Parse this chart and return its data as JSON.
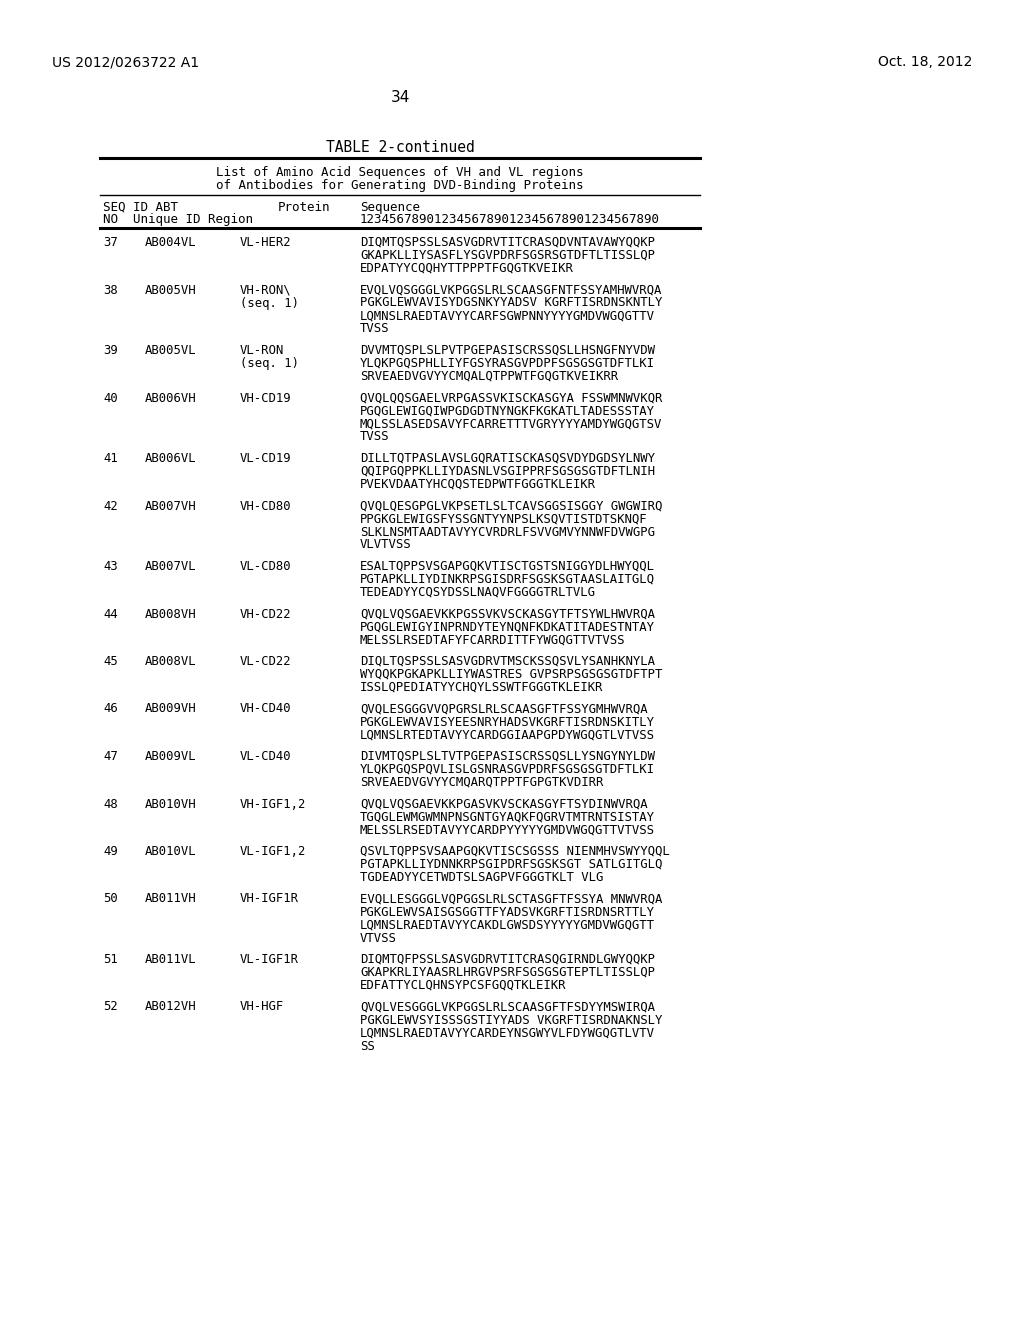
{
  "header_left": "US 2012/0263722 A1",
  "header_right": "Oct. 18, 2012",
  "page_number": "34",
  "table_title": "TABLE 2-continued",
  "subtitle1": "List of Amino Acid Sequences of VH and VL regions",
  "subtitle2": "of Antibodies for Generating DVD-Binding Proteins",
  "entries": [
    {
      "seq": "37",
      "abt": "AB004VL",
      "region": "VL-HER2",
      "region2": "",
      "lines": [
        "DIQMTQSPSSLSASVGDRVTITCRASQDVNTAVAWYQQKP",
        "GKAPKLLIYSASFLYSGVPDRFSGSRSGTDFTLTISSLQP",
        "EDPATYYCQQHYTTPPPTFGQGTKVEIKR"
      ]
    },
    {
      "seq": "38",
      "abt": "AB005VH",
      "region": "VH-RON\\",
      "region2": "(seq. 1)",
      "lines": [
        "EVQLVQSGGGLVKPGGSLRLSCAASGFNTFSSYAMHWVRQA",
        "PGKGLEWVAVISYDGSNKYYADSV KGRFTISRDNSKNTLY",
        "LQMNSLRAEDTAVYYCARFSGWPNNYYYYGMDVWGQGTTV",
        "TVSS"
      ]
    },
    {
      "seq": "39",
      "abt": "AB005VL",
      "region": "VL-RON",
      "region2": "(seq. 1)",
      "lines": [
        "DVVMTQSPLSLPVTPGEPASISCRSSQSLLHSNGFNYVDW",
        "YLQKPGQSPHLLIYFGSYRASGVPDPFSGSGSGTDFTLKI",
        "SRVEAEDVGVYYCMQALQTPPWTFGQGTKVEIKRR"
      ]
    },
    {
      "seq": "40",
      "abt": "AB006VH",
      "region": "VH-CD19",
      "region2": "",
      "lines": [
        "QVQLQQSGAELVRPGASSVKISCKASGYA FSSWMNWVKQR",
        "PGQGLEWIGQIWPGDGDTNYNGKFKGKATLTADESSSTAY",
        "MQLSSLASEDSAVYFCARRETTTVGRYYYYAMDYWGQGTSV",
        "TVSS"
      ]
    },
    {
      "seq": "41",
      "abt": "AB006VL",
      "region": "VL-CD19",
      "region2": "",
      "lines": [
        "DILLTQTPASLAVSLGQRATISCKASQSVDYDGDSYLNWY",
        "QQIPGQPPKLLIYDASNLVSGIPPRFSGSGSGTDFTLNIH",
        "PVEKVDAATYHCQQSTEDPWTFGGGTKLEIKR"
      ]
    },
    {
      "seq": "42",
      "abt": "AB007VH",
      "region": "VH-CD80",
      "region2": "",
      "lines": [
        "QVQLQESGPGLVKPSETLSLTCAVSGGSISGGY GWGWIRQ",
        "PPGKGLEWIGSFYSSGNTYYNPSLKSQVTISTDTSKNQF",
        "SLKLNSMTAADTAVYYCVRDRLFSVVGMVYNNWFDVWGPG",
        "VLVTVSS"
      ]
    },
    {
      "seq": "43",
      "abt": "AB007VL",
      "region": "VL-CD80",
      "region2": "",
      "lines": [
        "ESALTQPPSVSGAPGQKVTISCTGSTSNIGGYDLHWYQQL",
        "PGTAPKLLIYDINKRPSGISDRFSGSKSGTAASLAITGLQ",
        "TEDEADYYCQSYDSSLNAQVFGGGGTRLTVLG"
      ]
    },
    {
      "seq": "44",
      "abt": "AB008VH",
      "region": "VH-CD22",
      "region2": "",
      "lines": [
        "QVQLVQSGAEVKKPGSSVKVSCKASGYTFTSYWLHWVRQA",
        "PGQGLEWIGYINPRNDYTEYNQNFKDKATITADESTNTAY",
        "MELSSLRSEDTAFYFCARRDITTFYWGQGTTVTVSS"
      ]
    },
    {
      "seq": "45",
      "abt": "AB008VL",
      "region": "VL-CD22",
      "region2": "",
      "lines": [
        "DIQLTQSPSSLSASVGDRVTMSCKSSQSVLYSANHKNYLA",
        "WYQQKPGKAPKLLIYWASTRES GVPSRPSGSGSGTDFTPT",
        "ISSLQPEDIATYYCHQYLSSWTFGGGTKLEIKR"
      ]
    },
    {
      "seq": "46",
      "abt": "AB009VH",
      "region": "VH-CD40",
      "region2": "",
      "lines": [
        "QVQLESGGGVVQPGRSLRLSCAASGFTFSSYGMHWVRQA",
        "PGKGLEWVAVISYEESNRYHADSVKGRFTISRDNSKITLY",
        "LQMNSLRTEDTAVYYCARDGGIAAPGPDYWGQGTLVTVSS"
      ]
    },
    {
      "seq": "47",
      "abt": "AB009VL",
      "region": "VL-CD40",
      "region2": "",
      "lines": [
        "DIVMTQSPLSLTVTPGEPASISCRSSQSLLYSNGYNYLDW",
        "YLQKPGQSPQVLISLGSNRASGVPDRFSGSGSGTDFTLKI",
        "SRVEAEDVGVYYCMQARQTPPTFGPGTKVDIRR"
      ]
    },
    {
      "seq": "48",
      "abt": "AB010VH",
      "region": "VH-IGF1,2",
      "region2": "",
      "lines": [
        "QVQLVQSGAEVKKPGASVKVSCKASGYFTSYDINWVRQA",
        "TGQGLEWMGWMNPNSGNTGYAQKFQGRVTMTRNTSISTAY",
        "MELSSLRSEDTAVYYCARDPYYYYYGMDVWGQGTTVTVSS"
      ]
    },
    {
      "seq": "49",
      "abt": "AB010VL",
      "region": "VL-IGF1,2",
      "region2": "",
      "lines": [
        "QSVLTQPPSVSAAPGQKVTISCSGSSS NIENMHVSWYYQQL",
        "PGTAPKLLIYDNNKRPSGIPDRFSGSKSGT SATLGITGLQ",
        "TGDEADYYCETWDTSLSAGPVFGGGTKLT VLG"
      ]
    },
    {
      "seq": "50",
      "abt": "AB011VH",
      "region": "VH-IGF1R",
      "region2": "",
      "lines": [
        "EVQLLESGGGLVQPGGSLRLSCTASGFTFSSYA MNWVRQA",
        "PGKGLEWVSAISGSGGTTFYADSVKGRFTISRDNSRTTLY",
        "LQMNSLRAEDTAVYYCAKDLGWSDSYYYYYGMDVWGQGTT",
        "VTVSS"
      ]
    },
    {
      "seq": "51",
      "abt": "AB011VL",
      "region": "VL-IGF1R",
      "region2": "",
      "lines": [
        "DIQMTQFPSSLSASVGDRVTITCRASQGIRNDLGWYQQKP",
        "GKAPKRLIYAASRLHRGVPSRFSGSGSGTEPTLTISSLQP",
        "EDFATTYCLQHNSYPCSFGQQTKLEIKR"
      ]
    },
    {
      "seq": "52",
      "abt": "AB012VH",
      "region": "VH-HGF",
      "region2": "",
      "lines": [
        "QVQLVESGGGLVKPGGSLRLSCAASGFTFSDYYMSWIRQA",
        "PGKGLEWVSYISSSGSTIYYADS VKGRFTISRDNAKNSLY",
        "LQMNSLRAEDTAVYYCARDEYNSGWYVLFDYWGQGTLVTV",
        "SS"
      ]
    }
  ]
}
